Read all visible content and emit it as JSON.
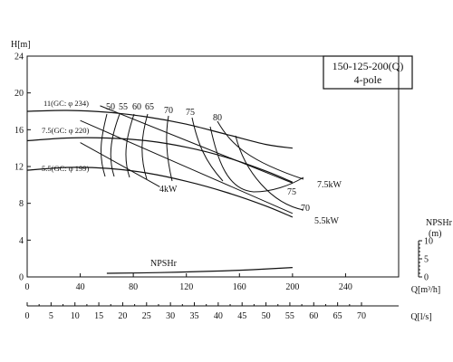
{
  "chart_data": {
    "type": "line",
    "title": "150-125-200(Q)",
    "subtitle": "4-pole",
    "y_axis_label": "H[m]",
    "y_ticks": [
      0,
      4,
      8,
      12,
      16,
      20,
      24
    ],
    "ylim": [
      0,
      24
    ],
    "x_axis_label": "Q[m³/h]",
    "x_ticks": [
      0,
      40,
      80,
      120,
      160,
      200,
      240
    ],
    "xlim": [
      0,
      280
    ],
    "x2_axis_label": "Q[l/s]",
    "x2_ticks": [
      0,
      5,
      10,
      15,
      20,
      25,
      30,
      35,
      40,
      45,
      50,
      55,
      60,
      65,
      70
    ],
    "npsh_axis_label": "NPSHr",
    "npsh_axis_unit": "(m)",
    "npsh_ticks": [
      0,
      5,
      10
    ],
    "npsh_lim": [
      0,
      10
    ],
    "grid": false,
    "head_curves": [
      {
        "name": "11(GC: φ 234)",
        "x": [
          0,
          30,
          60,
          90,
          120,
          150,
          180,
          200
        ],
        "y": [
          18.0,
          18.1,
          17.9,
          17.4,
          16.6,
          15.5,
          14.4,
          14.0
        ]
      },
      {
        "name": "7.5(GC: φ 220)",
        "x": [
          0,
          30,
          60,
          90,
          120,
          150,
          180,
          200
        ],
        "y": [
          14.8,
          15.1,
          15.1,
          14.8,
          14.1,
          13.0,
          11.5,
          10.3
        ]
      },
      {
        "name": "5.5(GC: φ 199)",
        "x": [
          0,
          30,
          60,
          90,
          120,
          150,
          180,
          200
        ],
        "y": [
          11.6,
          11.9,
          11.8,
          11.3,
          10.4,
          9.2,
          7.7,
          6.5
        ]
      }
    ],
    "efficiency_labels": [
      "50",
      "55",
      "60",
      "65",
      "70",
      "75",
      "80",
      "75",
      "70"
    ],
    "power_curves": [
      {
        "name": "4kW",
        "x": [
          40,
          100
        ],
        "y": [
          14.6,
          9.8
        ]
      },
      {
        "name": "7.5kW",
        "x": [
          55,
          200
        ],
        "y": [
          18.6,
          10.2
        ]
      },
      {
        "name": "5.5kW",
        "x": [
          40,
          200
        ],
        "y": [
          17.0,
          6.9
        ]
      }
    ],
    "npsh_curve": {
      "name": "NPSHr",
      "x": [
        60,
        100,
        140,
        170,
        200
      ],
      "y": [
        1.0,
        1.2,
        1.6,
        2.0,
        2.6
      ]
    }
  }
}
